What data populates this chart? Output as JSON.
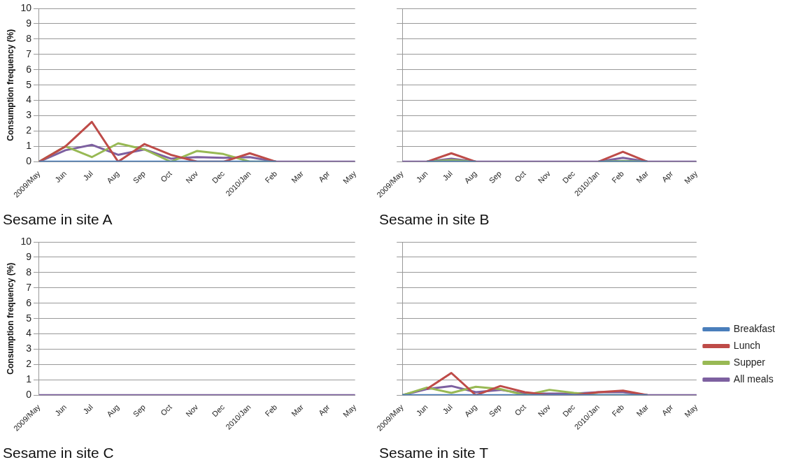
{
  "chart_data": [
    {
      "type": "line",
      "title": "Sesame in site A",
      "ylabel": "Consumption frequency (%)",
      "categories": [
        "2009/May",
        "Jun",
        "Jul",
        "Aug",
        "Sep",
        "Oct",
        "Nov",
        "Dec",
        "2010/Jan",
        "Feb",
        "Mar",
        "Apr",
        "May"
      ],
      "ylim": [
        0,
        10
      ],
      "yticks": [
        0,
        1,
        2,
        3,
        4,
        5,
        6,
        7,
        8,
        9,
        10
      ],
      "grid": "y",
      "marker": "none",
      "legend": false,
      "series": [
        {
          "color": "#4a7ebb",
          "values": [
            0,
            0,
            0,
            0,
            0,
            0,
            0,
            0,
            0,
            0,
            null,
            null,
            null
          ]
        },
        {
          "color": "#be4b48",
          "values": [
            0,
            1.0,
            2.6,
            0,
            1.15,
            0.45,
            0,
            0,
            0.55,
            0,
            null,
            null,
            null
          ]
        },
        {
          "color": "#98b954",
          "values": [
            0,
            1.0,
            0.3,
            1.2,
            0.8,
            0,
            0.7,
            0.5,
            0,
            0,
            null,
            null,
            null
          ]
        },
        {
          "color": "#7d60a0",
          "values": [
            0,
            0.75,
            1.1,
            0.45,
            0.8,
            0.2,
            0.3,
            0.25,
            0.3,
            0,
            0,
            0,
            0
          ]
        }
      ]
    },
    {
      "type": "line",
      "title": "Sesame in site B",
      "categories": [
        "2009/May",
        "Jun",
        "Jul",
        "Aug",
        "Sep",
        "Oct",
        "Nov",
        "Dec",
        "2010/Jan",
        "Feb",
        "Mar",
        "Apr",
        "May"
      ],
      "ylim": [
        0,
        10
      ],
      "yticks": [
        0,
        1,
        2,
        3,
        4,
        5,
        6,
        7,
        8,
        9,
        10
      ],
      "grid": "y",
      "marker": "none",
      "legend": false,
      "tick_labels": "x",
      "series": [
        {
          "color": "#4a7ebb",
          "values": [
            null,
            0,
            0,
            0,
            null,
            null,
            null,
            null,
            0,
            0,
            0,
            null,
            null
          ]
        },
        {
          "color": "#be4b48",
          "values": [
            null,
            0,
            0.55,
            0,
            null,
            null,
            null,
            null,
            0,
            0.65,
            0,
            null,
            null
          ]
        },
        {
          "color": "#98b954",
          "values": [
            null,
            0,
            0.1,
            0,
            null,
            null,
            null,
            null,
            0,
            0.05,
            0,
            null,
            null
          ]
        },
        {
          "color": "#7d60a0",
          "values": [
            0,
            0,
            0.2,
            0,
            0,
            0,
            0,
            0,
            0,
            0.25,
            0,
            0,
            0
          ]
        }
      ]
    },
    {
      "type": "line",
      "title": "Sesame in site C",
      "ylabel": "Consumption frequency (%)",
      "categories": [
        "2009/May",
        "Jun",
        "Jul",
        "Aug",
        "Sep",
        "Oct",
        "Nov",
        "Dec",
        "2010/Jan",
        "Feb",
        "Mar",
        "Apr",
        "May"
      ],
      "ylim": [
        0,
        10
      ],
      "yticks": [
        0,
        1,
        2,
        3,
        4,
        5,
        6,
        7,
        8,
        9,
        10
      ],
      "grid": "y",
      "marker": "none",
      "legend": false,
      "series": [
        {
          "color": "#7d60a0",
          "values": [
            0,
            0,
            0,
            0,
            0,
            0,
            0,
            0,
            0,
            0,
            0,
            0,
            0
          ]
        }
      ]
    },
    {
      "type": "line",
      "title": "Sesame in site T",
      "categories": [
        "2009/May",
        "Jun",
        "Jul",
        "Aug",
        "Sep",
        "Oct",
        "Nov",
        "Dec",
        "2010/Jan",
        "Feb",
        "Mar",
        "Apr",
        "May"
      ],
      "ylim": [
        0,
        10
      ],
      "yticks": [
        0,
        1,
        2,
        3,
        4,
        5,
        6,
        7,
        8,
        9,
        10
      ],
      "grid": "y",
      "marker": "none",
      "legend": "right",
      "tick_labels": "x",
      "series": [
        {
          "name": "Breakfast",
          "color": "#4a7ebb",
          "values": [
            0,
            0,
            0,
            0,
            0,
            0,
            0,
            0,
            0,
            0,
            0,
            null,
            null
          ]
        },
        {
          "name": "Lunch",
          "color": "#be4b48",
          "values": [
            null,
            0.4,
            1.45,
            0,
            0.6,
            0.2,
            0,
            0,
            0.2,
            0.3,
            0,
            null,
            null
          ]
        },
        {
          "name": "Supper",
          "color": "#98b954",
          "values": [
            0,
            0.5,
            0.15,
            0.55,
            0.4,
            0,
            0.35,
            0.15,
            0,
            0,
            0,
            null,
            null
          ]
        },
        {
          "name": "All meals",
          "color": "#7d60a0",
          "values": [
            0,
            0.4,
            0.6,
            0.2,
            0.35,
            0.1,
            0.1,
            0.1,
            0.2,
            0.2,
            0,
            0,
            0
          ]
        }
      ]
    }
  ]
}
